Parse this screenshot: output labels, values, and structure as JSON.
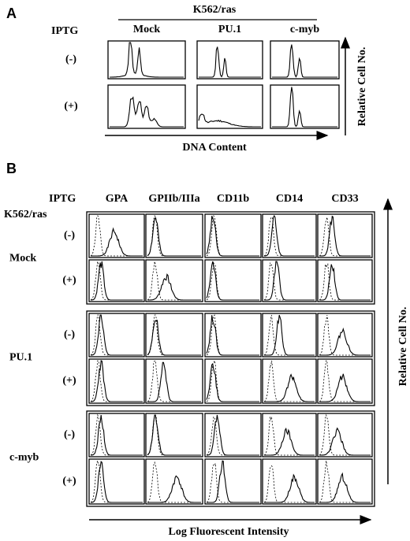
{
  "panel_a": {
    "label": "A",
    "cell_line": "K562/ras",
    "row_header": "IPTG",
    "columns": [
      "Mock",
      "PU.1",
      "c-myb"
    ],
    "rows": [
      "(-)",
      "(+)"
    ],
    "x_axis": "DNA Content",
    "y_axis": "Relative Cell No."
  },
  "panel_b": {
    "label": "B",
    "row_header": "IPTG",
    "cell_line": "K562/ras",
    "columns": [
      "GPA",
      "GPIIb/IIIa",
      "CD11b",
      "CD14",
      "CD33"
    ],
    "groups": [
      {
        "name": "Mock",
        "rows": [
          "(-)",
          "(+)"
        ]
      },
      {
        "name": "PU.1",
        "rows": [
          "(-)",
          "(+)"
        ]
      },
      {
        "name": "c-myb",
        "rows": [
          "(-)",
          "(+)"
        ]
      }
    ],
    "x_axis": "Log Fluorescent Intensity",
    "y_axis": "Relative Cell No."
  }
}
